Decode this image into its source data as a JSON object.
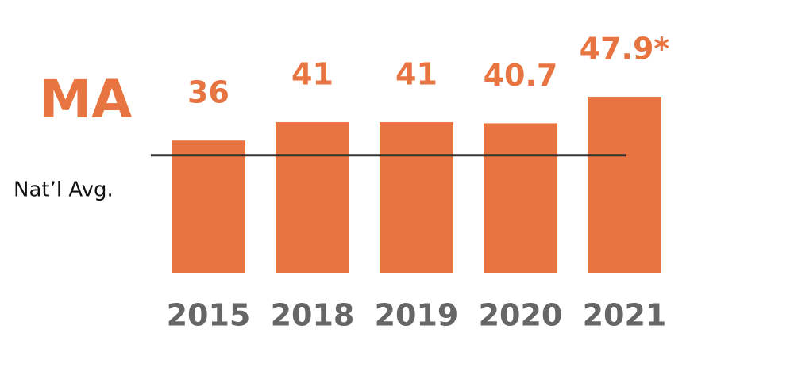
{
  "chart_data": {
    "type": "bar",
    "title": "MA",
    "categories": [
      "2015",
      "2018",
      "2019",
      "2020",
      "2021"
    ],
    "values": [
      36,
      41,
      41,
      40.7,
      47.9
    ],
    "value_labels": [
      "36",
      "41",
      "41",
      "40.7",
      "47.9*"
    ],
    "color": "#e87441",
    "ylim": [
      0,
      60
    ],
    "reference_line": {
      "label": "Nat’l Avg.",
      "value": 32,
      "color": "#333333"
    }
  }
}
